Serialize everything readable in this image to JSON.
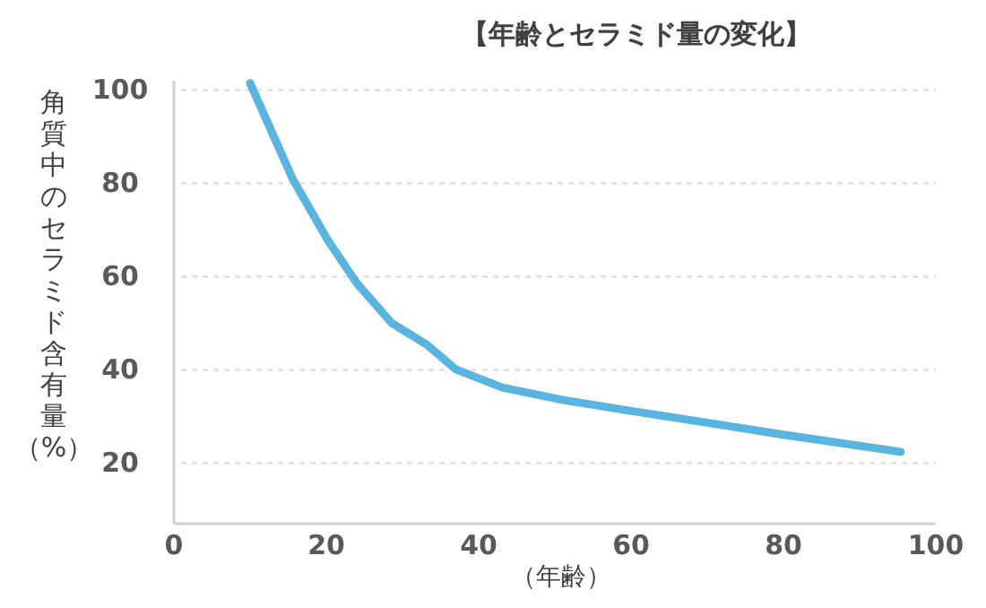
{
  "chart_data": {
    "type": "line",
    "title": "【年齢とセラミド量の変化】",
    "xlabel": "（年齢）",
    "ylabel": "角質中のセラミド含有量（%）",
    "x": [
      10,
      15.6,
      20.2,
      24,
      28.6,
      33.2,
      37,
      43.1,
      50.8,
      59.9,
      69.8,
      80,
      95.4
    ],
    "values": [
      101.5,
      80.9,
      67.8,
      58.6,
      50,
      45.4,
      40.1,
      36.2,
      33.6,
      31.2,
      28.7,
      26.1,
      22.4
    ],
    "color": "#5ab4e0",
    "xlim": [
      0,
      100
    ],
    "ylim": [
      7,
      102
    ],
    "xticks": [
      0,
      20,
      40,
      60,
      80,
      100
    ],
    "yticks": [
      20,
      40,
      60,
      80,
      100
    ],
    "grid": "y",
    "marker": "none",
    "line_style": "solid"
  }
}
